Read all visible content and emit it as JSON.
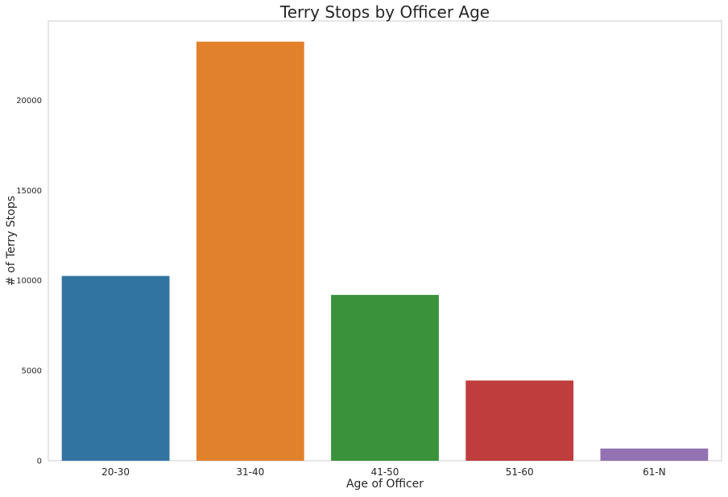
{
  "chart_data": {
    "type": "bar",
    "title": "Terry Stops by Officer Age",
    "xlabel": "Age of Officer",
    "ylabel": "# of Terry Stops",
    "categories": [
      "20-30",
      "31-40",
      "41-50",
      "51-60",
      "61-N"
    ],
    "values": [
      10250,
      23250,
      9200,
      4450,
      680
    ],
    "ylim": [
      0,
      24400
    ],
    "yticks": [
      0,
      5000,
      10000,
      15000,
      20000
    ],
    "grid": false,
    "legend": "none",
    "colors": [
      "#3274a1",
      "#e1812c",
      "#3a923a",
      "#c03d3e",
      "#9372b2"
    ]
  }
}
